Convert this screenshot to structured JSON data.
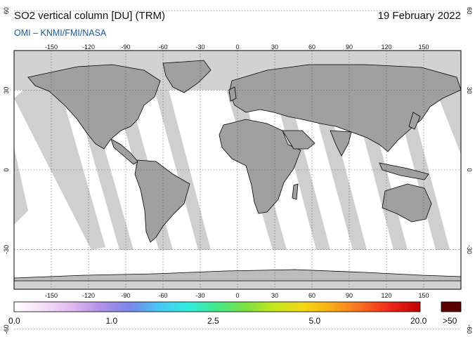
{
  "header": {
    "title": "SO2 vertical column [DU] (TRM)",
    "date": "19 February 2022",
    "credit": "OMI  –  KNMI/FMI/NASA"
  },
  "map": {
    "lon_ticks": [
      "-150",
      "-120",
      "-90",
      "-60",
      "-30",
      "0",
      "30",
      "60",
      "90",
      "120",
      "150"
    ],
    "lat_ticks": [
      "60",
      "30",
      "0",
      "-30",
      "-60"
    ],
    "colors": {
      "land": "#a0a0a0",
      "polar_nodata": "#d2d2d2",
      "swath_gap": "#d0d0d0",
      "data": "#ffffff",
      "coast": "#000000",
      "grid": "#555555"
    }
  },
  "colorbar": {
    "ticks": [
      {
        "label": "0.0",
        "frac": 0.0
      },
      {
        "label": "1.0",
        "frac": 0.25
      },
      {
        "label": "2.5",
        "frac": 0.5
      },
      {
        "label": "5.0",
        "frac": 0.75
      },
      {
        "label": "20.0",
        "frac": 1.0
      }
    ],
    "overflow_label": ">50",
    "overflow_color": "#5a0000",
    "gradient": [
      "#ffffff",
      "#f4dff6",
      "#e2b8f0",
      "#b090e8",
      "#7a86ea",
      "#46c8f4",
      "#30ece0",
      "#42e888",
      "#7ee040",
      "#c6e61c",
      "#f4d810",
      "#f8a818",
      "#f86a20",
      "#ee2418",
      "#c00000"
    ]
  }
}
